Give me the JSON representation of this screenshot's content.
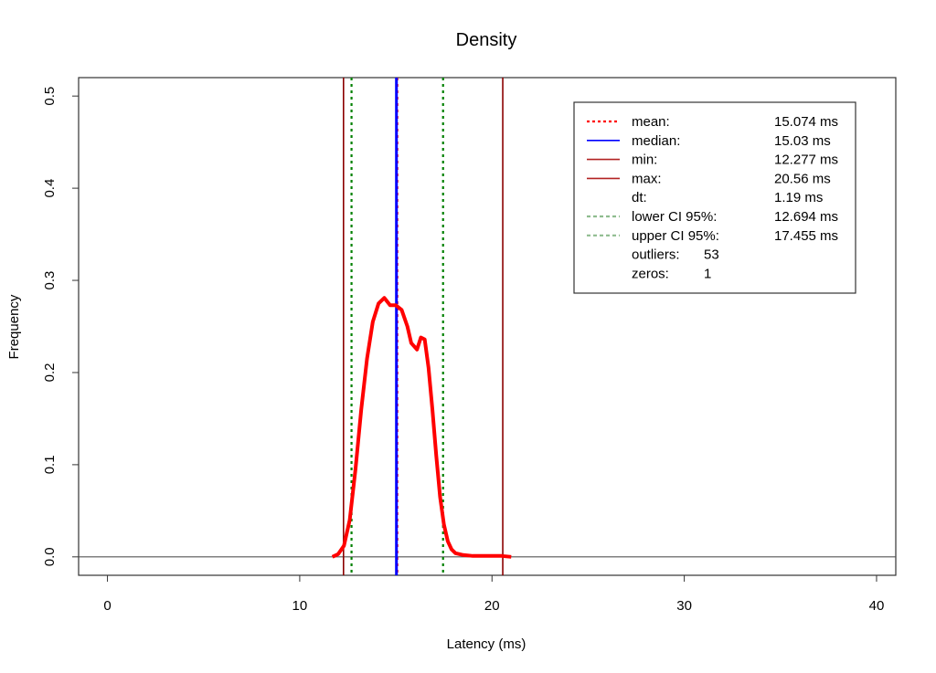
{
  "chart_data": {
    "type": "line",
    "title": "Density",
    "xlabel": "Latency (ms)",
    "ylabel": "Frequency",
    "xlim": [
      -1.5,
      41
    ],
    "ylim": [
      -0.02,
      0.52
    ],
    "x_ticks": [
      0,
      10,
      20,
      30,
      40
    ],
    "y_ticks": [
      0.0,
      0.1,
      0.2,
      0.3,
      0.4,
      0.5
    ],
    "x_tick_labels": [
      "0",
      "10",
      "20",
      "30",
      "40"
    ],
    "y_tick_labels": [
      "0.0",
      "0.1",
      "0.2",
      "0.3",
      "0.4",
      "0.5"
    ],
    "baseline_y": 0,
    "series": [
      {
        "color": "#ff0000",
        "x": [
          11.7,
          12.0,
          12.3,
          12.6,
          12.9,
          13.2,
          13.5,
          13.8,
          14.1,
          14.4,
          14.7,
          15.0,
          15.3,
          15.6,
          15.8,
          16.1,
          16.3,
          16.5,
          16.7,
          16.9,
          17.1,
          17.3,
          17.5,
          17.7,
          17.9,
          18.1,
          18.5,
          19.0,
          19.5,
          20.0,
          20.5,
          21.0
        ],
        "y": [
          0.0,
          0.003,
          0.012,
          0.04,
          0.095,
          0.16,
          0.215,
          0.255,
          0.275,
          0.281,
          0.273,
          0.273,
          0.268,
          0.25,
          0.232,
          0.225,
          0.238,
          0.236,
          0.205,
          0.16,
          0.11,
          0.065,
          0.035,
          0.017,
          0.008,
          0.004,
          0.002,
          0.001,
          0.001,
          0.001,
          0.001,
          0.0
        ]
      }
    ],
    "vertical_lines": [
      {
        "name": "mean",
        "x": 15.074,
        "color": "#ff0000",
        "style": "dotted"
      },
      {
        "name": "median",
        "x": 15.03,
        "color": "#0000ff",
        "style": "solid"
      },
      {
        "name": "min",
        "x": 12.277,
        "color": "#8b0000",
        "style": "solid"
      },
      {
        "name": "max",
        "x": 20.56,
        "color": "#8b0000",
        "style": "solid"
      },
      {
        "name": "lower CI 95%",
        "x": 12.694,
        "color": "#008000",
        "style": "dotted"
      },
      {
        "name": "upper CI 95%",
        "x": 17.455,
        "color": "#008000",
        "style": "dotted"
      }
    ],
    "legend": {
      "position": "top-right",
      "entries": [
        {
          "label": "mean:",
          "value": "15.074 ms",
          "color": "#ff0000",
          "style": "dotted"
        },
        {
          "label": "median:",
          "value": "15.03 ms",
          "color": "#0000ff",
          "style": "solid"
        },
        {
          "label": "min:",
          "value": "12.277 ms",
          "color": "#b22222",
          "style": "solid"
        },
        {
          "label": "max:",
          "value": "20.56 ms",
          "color": "#b22222",
          "style": "solid"
        },
        {
          "label": "dt:",
          "value": "1.19 ms",
          "color": "",
          "style": "none"
        },
        {
          "label": "lower CI 95%:",
          "value": "12.694 ms",
          "color": "#8fbc8f",
          "style": "dashed"
        },
        {
          "label": "upper CI 95%:",
          "value": "17.455 ms",
          "color": "#8fbc8f",
          "style": "dashed"
        },
        {
          "label": "outliers:",
          "value": "53",
          "color": "",
          "style": "none"
        },
        {
          "label": "zeros:",
          "value": "1",
          "color": "",
          "style": "none"
        }
      ]
    }
  }
}
